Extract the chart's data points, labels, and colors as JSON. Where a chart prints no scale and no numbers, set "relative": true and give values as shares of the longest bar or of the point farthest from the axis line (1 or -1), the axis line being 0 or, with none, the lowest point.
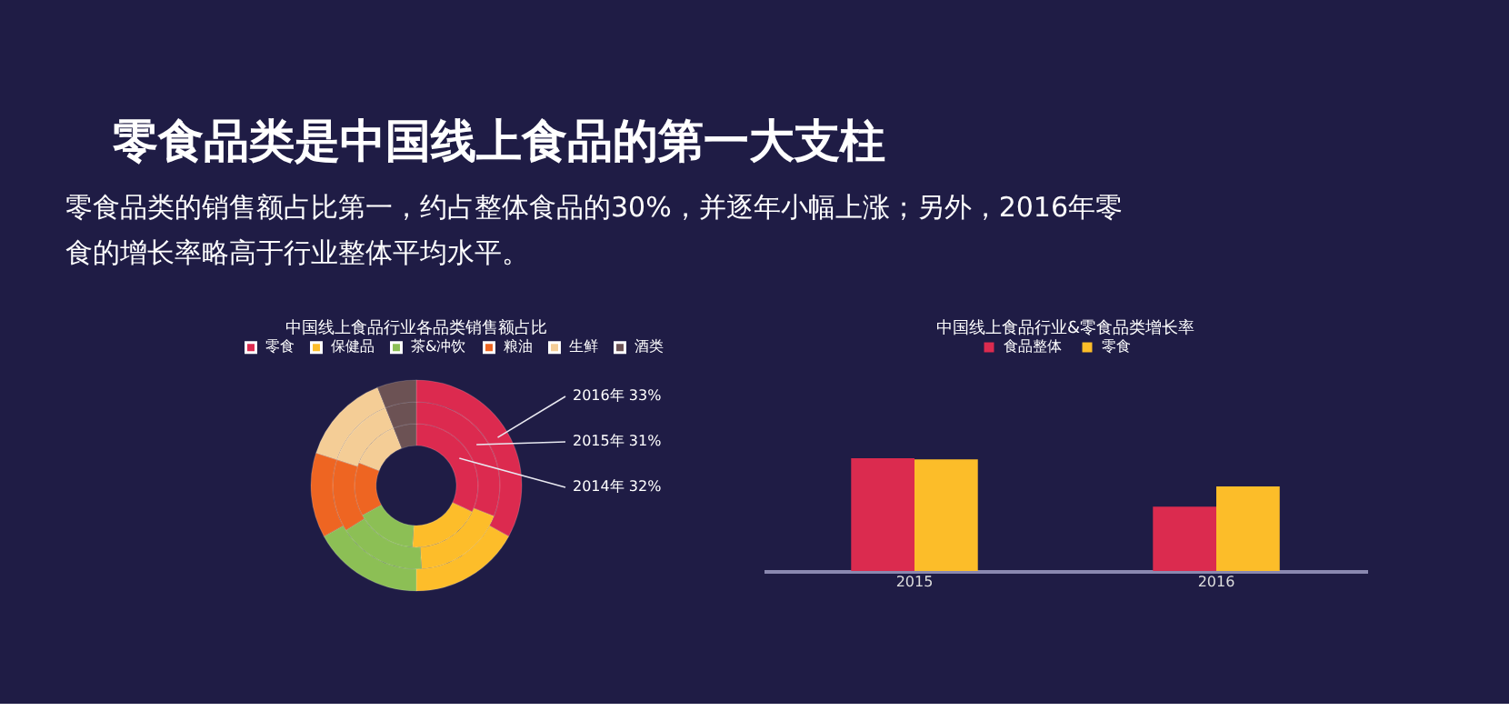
{
  "chart_data": [
    {
      "type": "donut",
      "title": "中国线上食品行业各品类销售额占比",
      "annotations": [
        "零食品类是中国线上食品的第一大支柱",
        "零食品类的销售额占比第一，约占整体食品的30%，并逐年小幅上涨；另外，2016年零食的增长率略高于行业整体平均水平。"
      ],
      "categories": [
        "零食",
        "保健品",
        "茶&冲饮",
        "粮油",
        "生鲜",
        "酒类"
      ],
      "colors": [
        "#dc2a4f",
        "#fdbd2a",
        "#8cbf55",
        "#ee6522",
        "#f4cd96",
        "#6c5254"
      ],
      "legend": "top",
      "series": [
        {
          "name": "2014年",
          "values": [
            32,
            19,
            16,
            14,
            13,
            6
          ],
          "value_labels": [
            "32%",
            null,
            null,
            null,
            null,
            null
          ]
        },
        {
          "name": "2015年",
          "values": [
            31,
            18,
            17,
            14,
            14,
            6
          ],
          "value_labels": [
            "31%",
            null,
            null,
            null,
            null,
            null
          ]
        },
        {
          "name": "2016年",
          "values": [
            33,
            17,
            17,
            13,
            14,
            6
          ],
          "value_labels": [
            "33%",
            null,
            null,
            null,
            null,
            null
          ]
        }
      ]
    },
    {
      "type": "bar",
      "title": "中国线上食品行业&零食品类增长率",
      "categories": [
        "2015",
        "2016"
      ],
      "relative": true,
      "legend": "top",
      "series": [
        {
          "name": "食品整体",
          "color": "#db2b4f",
          "values": [
            1.0,
            0.57
          ]
        },
        {
          "name": "零食",
          "color": "#fcbd29",
          "values": [
            0.99,
            0.75
          ]
        }
      ]
    }
  ]
}
